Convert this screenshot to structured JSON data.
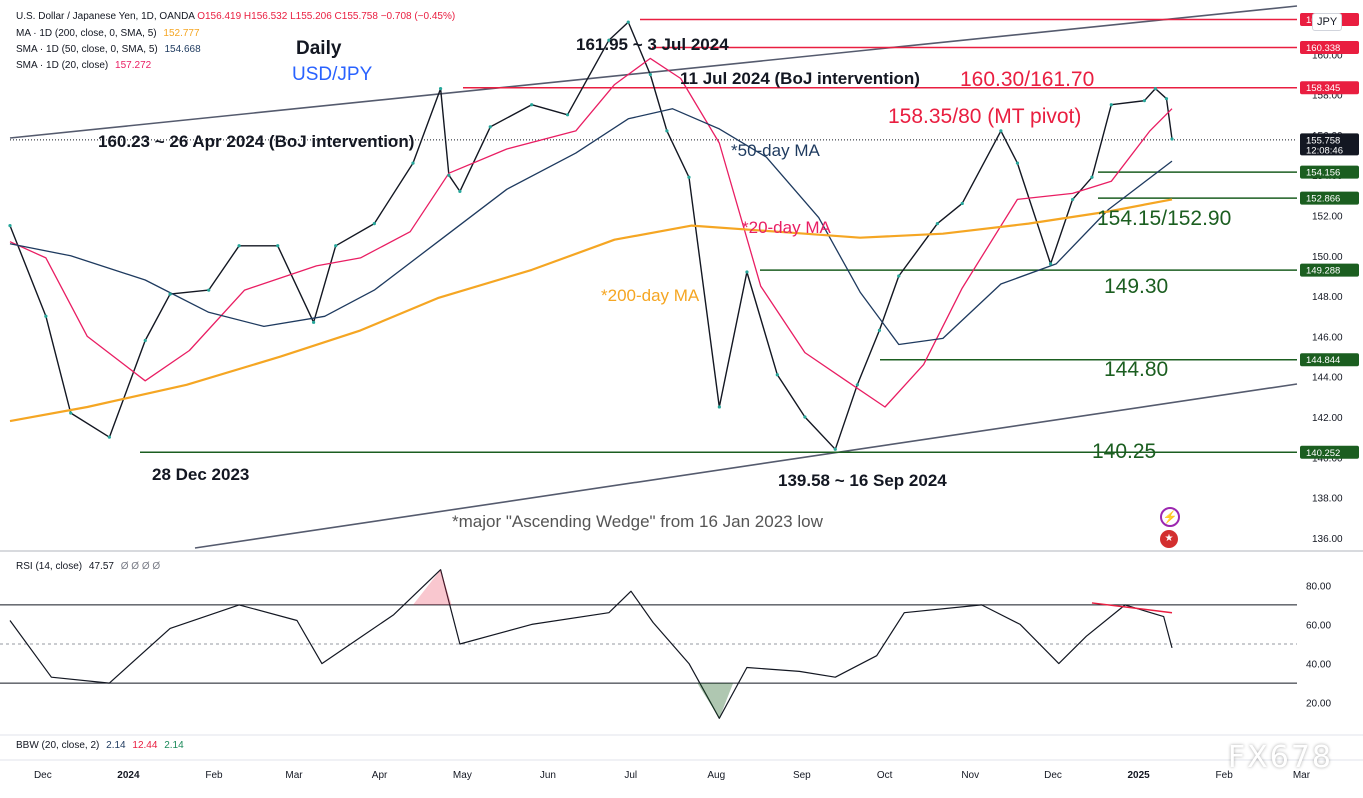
{
  "header": {
    "symbol_line": "U.S. Dollar / Japanese Yen, 1D, OANDA",
    "ohlc": "O156.419 H156.532 L155.206 C155.758 −0.708 (−0.45%)",
    "indicators": [
      {
        "label": "MA · 1D (200, close, 0, SMA, 5)",
        "value": "152.777",
        "color": "#f5a623"
      },
      {
        "label": "SMA · 1D (50, close, 0, SMA, 5)",
        "value": "154.668",
        "color": "#1e3a5f"
      },
      {
        "label": "SMA · 1D (20, close)",
        "value": "157.272",
        "color": "#e91e63"
      }
    ]
  },
  "unit_button": "JPY",
  "watermark": "FX678",
  "chart_data": {
    "type": "line",
    "title": "Daily",
    "subtitle": "USD/JPY",
    "x_ticks": [
      "Dec",
      "2024",
      "Feb",
      "Mar",
      "Apr",
      "May",
      "Jun",
      "Jul",
      "Aug",
      "Sep",
      "Oct",
      "Nov",
      "Dec",
      "2025",
      "Feb",
      "Mar"
    ],
    "y_ticks": [
      "160.00",
      "158.00",
      "156.00",
      "154.00",
      "152.00",
      "150.00",
      "148.00",
      "146.00",
      "144.00",
      "142.00",
      "140.00",
      "138.00",
      "136.00"
    ],
    "ylim": [
      135.5,
      162.3
    ],
    "series": [
      {
        "name": "USD/JPY",
        "color": "#131722",
        "x": [
          "2023-11-22",
          "2023-12-05",
          "2023-12-14",
          "2023-12-28",
          "2024-01-10",
          "2024-01-19",
          "2024-02-02",
          "2024-02-13",
          "2024-02-27",
          "2024-03-11",
          "2024-03-19",
          "2024-04-02",
          "2024-04-16",
          "2024-04-26",
          "2024-04-29",
          "2024-05-03",
          "2024-05-14",
          "2024-05-29",
          "2024-06-11",
          "2024-06-26",
          "2024-07-03",
          "2024-07-11",
          "2024-07-17",
          "2024-07-25",
          "2024-08-05",
          "2024-08-15",
          "2024-08-26",
          "2024-09-05",
          "2024-09-16",
          "2024-09-24",
          "2024-10-02",
          "2024-10-09",
          "2024-10-23",
          "2024-11-01",
          "2024-11-15",
          "2024-11-21",
          "2024-12-03",
          "2024-12-11",
          "2024-12-18",
          "2024-12-25",
          "2025-01-06",
          "2025-01-10",
          "2025-01-14",
          "2025-01-16"
        ],
        "values": [
          151.5,
          147.0,
          142.2,
          141.0,
          145.8,
          148.1,
          148.3,
          150.5,
          150.5,
          146.7,
          150.5,
          151.6,
          154.6,
          158.3,
          154.0,
          153.2,
          156.4,
          157.5,
          157.0,
          160.7,
          161.6,
          159.0,
          156.2,
          153.9,
          142.5,
          149.2,
          144.1,
          142.0,
          140.4,
          143.6,
          146.3,
          149.0,
          151.6,
          152.6,
          156.2,
          154.6,
          149.6,
          152.8,
          153.9,
          157.5,
          157.7,
          158.3,
          157.8,
          155.8
        ]
      },
      {
        "name": "*20-day MA",
        "color": "#e91e63",
        "x": [
          "2023-11-22",
          "2023-12-05",
          "2023-12-20",
          "2024-01-10",
          "2024-01-26",
          "2024-02-15",
          "2024-03-12",
          "2024-03-28",
          "2024-04-15",
          "2024-04-29",
          "2024-05-20",
          "2024-06-14",
          "2024-06-28",
          "2024-07-11",
          "2024-07-22",
          "2024-08-05",
          "2024-08-20",
          "2024-09-05",
          "2024-09-20",
          "2024-10-04",
          "2024-10-18",
          "2024-11-01",
          "2024-11-21",
          "2024-12-11",
          "2024-12-25",
          "2025-01-08",
          "2025-01-16"
        ],
        "values": [
          150.7,
          149.9,
          146.0,
          143.8,
          145.3,
          148.3,
          149.5,
          149.9,
          151.2,
          154.1,
          155.3,
          156.2,
          158.5,
          159.8,
          158.8,
          155.6,
          148.5,
          145.2,
          143.8,
          142.5,
          144.6,
          148.4,
          152.8,
          153.1,
          153.7,
          156.2,
          157.3
        ]
      },
      {
        "name": "*50-day MA",
        "color": "#1e3a5f",
        "x": [
          "2023-11-22",
          "2023-12-14",
          "2024-01-10",
          "2024-02-02",
          "2024-02-22",
          "2024-03-15",
          "2024-04-02",
          "2024-04-26",
          "2024-05-20",
          "2024-06-14",
          "2024-07-03",
          "2024-07-19",
          "2024-08-05",
          "2024-08-22",
          "2024-09-10",
          "2024-09-25",
          "2024-10-09",
          "2024-10-25",
          "2024-11-15",
          "2024-12-05",
          "2024-12-24",
          "2025-01-16"
        ],
        "values": [
          150.6,
          150.0,
          148.8,
          147.2,
          146.5,
          147.0,
          148.3,
          150.8,
          153.3,
          155.1,
          156.8,
          157.3,
          156.3,
          154.9,
          151.9,
          148.2,
          145.6,
          145.9,
          148.6,
          149.6,
          152.3,
          154.7
        ]
      },
      {
        "name": "*200-day MA",
        "color": "#f5a623",
        "x": [
          "2023-11-22",
          "2023-12-20",
          "2024-01-25",
          "2024-02-28",
          "2024-03-28",
          "2024-04-25",
          "2024-05-29",
          "2024-06-28",
          "2024-07-26",
          "2024-08-26",
          "2024-09-25",
          "2024-10-25",
          "2024-11-25",
          "2024-12-24",
          "2025-01-16"
        ],
        "values": [
          141.8,
          142.5,
          143.6,
          145.0,
          146.3,
          147.9,
          149.3,
          150.8,
          151.5,
          151.2,
          150.9,
          151.1,
          151.6,
          152.2,
          152.8
        ]
      }
    ],
    "levels": [
      {
        "name": "161.730",
        "value": 161.73,
        "color": "#e91e40"
      },
      {
        "name": "160.338",
        "value": 160.338,
        "color": "#e91e40"
      },
      {
        "name": "158.345",
        "value": 158.345,
        "color": "#e91e40"
      },
      {
        "name": "155.758",
        "value": 155.758,
        "color": "#131722"
      },
      {
        "name": "154.156",
        "value": 154.156,
        "color": "#1b5e20"
      },
      {
        "name": "152.866",
        "value": 152.866,
        "color": "#1b5e20"
      },
      {
        "name": "149.288",
        "value": 149.288,
        "color": "#1b5e20"
      },
      {
        "name": "144.844",
        "value": 144.844,
        "color": "#1b5e20"
      },
      {
        "name": "140.252",
        "value": 140.252,
        "color": "#1b5e20"
      }
    ],
    "last_time": "12:08:46",
    "annotations": {
      "peak": "161.95 ~ 3 Jul 2024",
      "boj_jul": "11 Jul 2024 (BoJ intervention)",
      "zone_red": "160.30/161.70",
      "pivot": "158.35/80 (MT pivot)",
      "boj_apr": "160.23 ~ 26 Apr 2024 (BoJ intervention)",
      "ma50": "*50-day MA",
      "ma20": "*20-day MA",
      "ma200": "*200-day MA",
      "support1": "154.15/152.90",
      "support2": "149.30",
      "support3": "144.80",
      "support4": "140.25",
      "low_dec": "28 Dec 2023",
      "low_sep": "139.58 ~ 16 Sep 2024",
      "wedge": "*major \"Ascending Wedge\" from 16 Jan 2023 low"
    },
    "rsi": {
      "label": "RSI (14, close)",
      "value": "47.57",
      "extra": "Ø Ø Ø Ø",
      "y_ticks": [
        "80.00",
        "60.00",
        "40.00",
        "20.00"
      ],
      "ylim": [
        5,
        95
      ],
      "bands": [
        70,
        30
      ],
      "x": [
        "2023-11-22",
        "2023-12-07",
        "2023-12-28",
        "2024-01-19",
        "2024-02-13",
        "2024-03-05",
        "2024-03-14",
        "2024-04-09",
        "2024-04-26",
        "2024-05-03",
        "2024-05-29",
        "2024-06-26",
        "2024-07-04",
        "2024-07-12",
        "2024-07-25",
        "2024-08-05",
        "2024-08-15",
        "2024-09-03",
        "2024-09-16",
        "2024-10-01",
        "2024-10-11",
        "2024-11-08",
        "2024-11-22",
        "2024-12-06",
        "2024-12-16",
        "2024-12-30",
        "2025-01-13",
        "2025-01-16"
      ],
      "values": [
        62,
        33,
        30,
        58,
        70,
        62,
        40,
        65,
        88,
        50,
        60,
        66,
        77,
        61,
        40,
        12,
        38,
        36,
        33,
        44,
        66,
        70,
        60,
        40,
        54,
        70,
        64,
        48
      ]
    },
    "bbw": {
      "label": "BBW (20, close, 2)",
      "values": [
        "2.14",
        "12.44",
        "2.14"
      ]
    }
  }
}
